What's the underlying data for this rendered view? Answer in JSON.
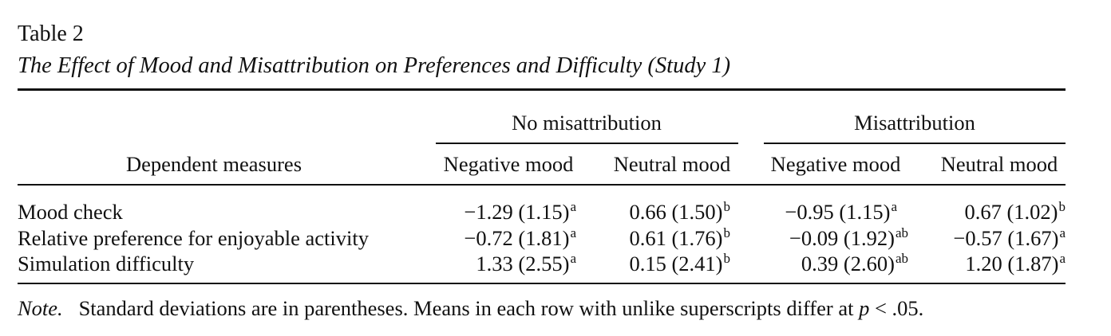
{
  "table": {
    "label": "Table 2",
    "title": "The Effect of Mood and Misattribution on Preferences and Difficulty (Study 1)",
    "column_groups": [
      {
        "label": "No misattribution",
        "columns": [
          "Negative mood",
          "Neutral mood"
        ]
      },
      {
        "label": "Misattribution",
        "columns": [
          "Negative mood",
          "Neutral mood"
        ]
      }
    ],
    "row_header_label": "Dependent measures",
    "rows": [
      {
        "label": "Mood check",
        "cells": [
          {
            "value": "−1.29 (1.15)",
            "sup": "a"
          },
          {
            "value": "0.66 (1.50)",
            "sup": "b"
          },
          {
            "value": "−0.95 (1.15)",
            "sup": "a"
          },
          {
            "value": "0.67 (1.02)",
            "sup": "b"
          }
        ]
      },
      {
        "label": "Relative preference for enjoyable activity",
        "cells": [
          {
            "value": "−0.72 (1.81)",
            "sup": "a"
          },
          {
            "value": "0.61 (1.76)",
            "sup": "b"
          },
          {
            "value": "−0.09 (1.92)",
            "sup": "ab"
          },
          {
            "value": "−0.57 (1.67)",
            "sup": "a"
          }
        ]
      },
      {
        "label": "Simulation difficulty",
        "cells": [
          {
            "value": "1.33 (2.55)",
            "sup": "a"
          },
          {
            "value": "0.15 (2.41)",
            "sup": "b"
          },
          {
            "value": "0.39 (2.60)",
            "sup": "ab"
          },
          {
            "value": "1.20 (1.87)",
            "sup": "a"
          }
        ]
      }
    ],
    "note": {
      "label": "Note.",
      "text": "Standard deviations are in parentheses. Means in each row with unlike superscripts differ at",
      "p_symbol": "p",
      "threshold": "< .05."
    }
  }
}
